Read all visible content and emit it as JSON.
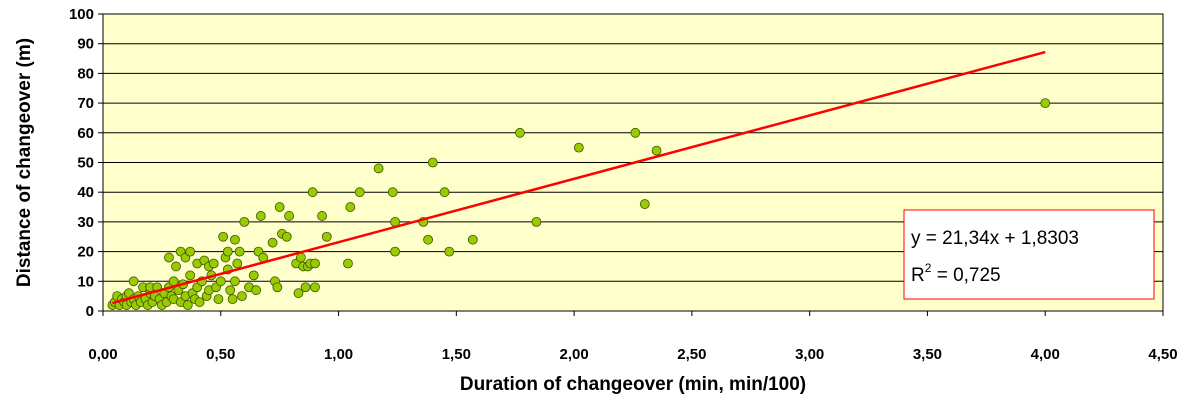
{
  "chart_data": {
    "type": "scatter",
    "title": "",
    "xlabel": "Duration of changeover (min, min/100)",
    "ylabel": "Distance of changeover (m)",
    "xlim": [
      0,
      4.5
    ],
    "ylim": [
      0,
      100
    ],
    "x_ticks": [
      "0,00",
      "0,50",
      "1,00",
      "1,50",
      "2,00",
      "2,50",
      "3,00",
      "3,50",
      "4,00",
      "4,50"
    ],
    "y_ticks": [
      "0",
      "10",
      "20",
      "30",
      "40",
      "50",
      "60",
      "70",
      "80",
      "90",
      "100"
    ],
    "grid": "horizontal",
    "colors": {
      "plot_bg": "#FFFFCC",
      "point": "#99CC00",
      "point_edge": "#3F5200",
      "trendline": "#FF0000"
    },
    "points": [
      [
        0.04,
        2
      ],
      [
        0.05,
        3
      ],
      [
        0.06,
        5
      ],
      [
        0.07,
        2
      ],
      [
        0.08,
        4
      ],
      [
        0.09,
        3
      ],
      [
        0.1,
        5
      ],
      [
        0.1,
        2
      ],
      [
        0.11,
        6
      ],
      [
        0.12,
        3
      ],
      [
        0.13,
        4
      ],
      [
        0.13,
        10
      ],
      [
        0.14,
        2
      ],
      [
        0.15,
        5
      ],
      [
        0.16,
        3
      ],
      [
        0.17,
        8
      ],
      [
        0.18,
        4
      ],
      [
        0.19,
        2
      ],
      [
        0.2,
        6
      ],
      [
        0.2,
        8
      ],
      [
        0.21,
        3
      ],
      [
        0.22,
        5
      ],
      [
        0.23,
        8
      ],
      [
        0.24,
        4
      ],
      [
        0.25,
        2
      ],
      [
        0.26,
        6
      ],
      [
        0.27,
        3
      ],
      [
        0.28,
        18
      ],
      [
        0.28,
        8
      ],
      [
        0.29,
        5
      ],
      [
        0.3,
        10
      ],
      [
        0.3,
        4
      ],
      [
        0.31,
        15
      ],
      [
        0.32,
        7
      ],
      [
        0.33,
        3
      ],
      [
        0.33,
        20
      ],
      [
        0.34,
        9
      ],
      [
        0.35,
        5
      ],
      [
        0.35,
        18
      ],
      [
        0.36,
        2
      ],
      [
        0.37,
        20
      ],
      [
        0.37,
        12
      ],
      [
        0.38,
        6
      ],
      [
        0.39,
        4
      ],
      [
        0.4,
        8
      ],
      [
        0.4,
        16
      ],
      [
        0.41,
        3
      ],
      [
        0.42,
        10
      ],
      [
        0.43,
        17
      ],
      [
        0.44,
        5
      ],
      [
        0.45,
        7
      ],
      [
        0.45,
        15
      ],
      [
        0.46,
        12
      ],
      [
        0.47,
        16
      ],
      [
        0.48,
        8
      ],
      [
        0.49,
        4
      ],
      [
        0.5,
        10
      ],
      [
        0.51,
        25
      ],
      [
        0.52,
        18
      ],
      [
        0.53,
        14
      ],
      [
        0.53,
        20
      ],
      [
        0.54,
        7
      ],
      [
        0.55,
        4
      ],
      [
        0.56,
        24
      ],
      [
        0.56,
        10
      ],
      [
        0.57,
        16
      ],
      [
        0.58,
        20
      ],
      [
        0.59,
        5
      ],
      [
        0.6,
        30
      ],
      [
        0.62,
        8
      ],
      [
        0.64,
        12
      ],
      [
        0.65,
        7
      ],
      [
        0.66,
        20
      ],
      [
        0.67,
        32
      ],
      [
        0.68,
        18
      ],
      [
        0.72,
        23
      ],
      [
        0.73,
        10
      ],
      [
        0.74,
        8
      ],
      [
        0.75,
        35
      ],
      [
        0.76,
        26
      ],
      [
        0.78,
        25
      ],
      [
        0.79,
        32
      ],
      [
        0.82,
        16
      ],
      [
        0.83,
        6
      ],
      [
        0.84,
        18
      ],
      [
        0.85,
        15
      ],
      [
        0.86,
        8
      ],
      [
        0.87,
        15
      ],
      [
        0.88,
        16
      ],
      [
        0.89,
        40
      ],
      [
        0.9,
        8
      ],
      [
        0.9,
        16
      ],
      [
        0.93,
        32
      ],
      [
        0.95,
        25
      ],
      [
        1.04,
        16
      ],
      [
        1.05,
        35
      ],
      [
        1.09,
        40
      ],
      [
        1.17,
        48
      ],
      [
        1.23,
        40
      ],
      [
        1.24,
        30
      ],
      [
        1.24,
        20
      ],
      [
        1.36,
        30
      ],
      [
        1.38,
        24
      ],
      [
        1.4,
        50
      ],
      [
        1.45,
        40
      ],
      [
        1.47,
        20
      ],
      [
        1.57,
        24
      ],
      [
        1.77,
        60
      ],
      [
        1.84,
        30
      ],
      [
        2.02,
        55
      ],
      [
        2.26,
        60
      ],
      [
        2.3,
        36
      ],
      [
        2.35,
        54
      ],
      [
        4.0,
        70
      ]
    ],
    "trendline": {
      "x_range": [
        0.04,
        4.0
      ],
      "equation": "y = 21,34x + 1,8303",
      "r2_prefix": "R",
      "r2_sup": "2",
      "r2_value": " = 0,725"
    }
  }
}
